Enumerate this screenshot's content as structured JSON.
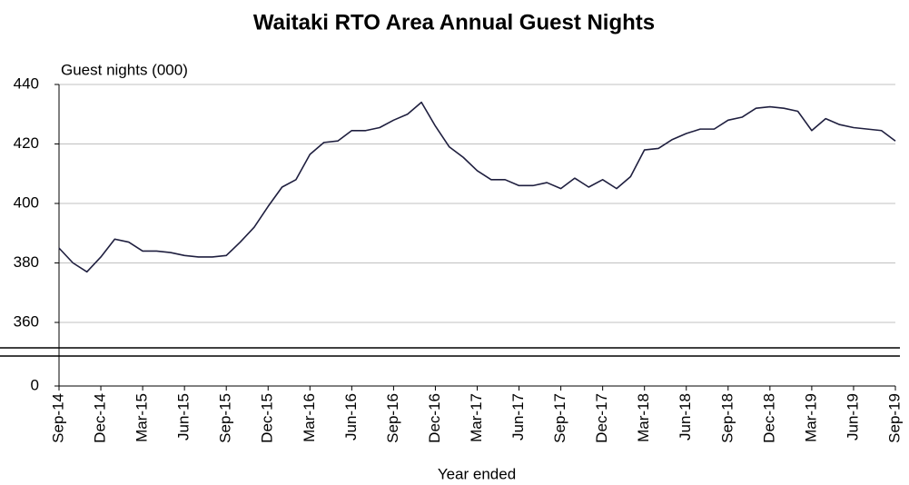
{
  "chart_data": {
    "type": "line",
    "title": "Waitaki RTO Area Annual  Guest Nights",
    "y_label": "Guest nights (000)",
    "x_label": "Year ended",
    "categories": [
      "Sep-14",
      null,
      null,
      "Dec-14",
      null,
      null,
      "Mar-15",
      null,
      null,
      "Jun-15",
      null,
      null,
      "Sep-15",
      null,
      null,
      "Dec-15",
      null,
      null,
      "Mar-16",
      null,
      null,
      "Jun-16",
      null,
      null,
      "Sep-16",
      null,
      null,
      "Dec-16",
      null,
      null,
      "Mar-17",
      null,
      null,
      "Jun-17",
      null,
      null,
      "Sep-17",
      null,
      null,
      "Dec-17",
      null,
      null,
      "Mar-18",
      null,
      null,
      "Jun-18",
      null,
      null,
      "Sep-18",
      null,
      null,
      "Dec-18",
      null,
      null,
      "Mar-19",
      null,
      null,
      "Jun-19",
      null,
      null,
      "Sep-19"
    ],
    "series": [
      {
        "name": "Guest nights",
        "color": "#1f1f3f",
        "values": [
          385,
          380,
          377,
          382,
          388,
          387,
          384,
          384,
          383.5,
          382.5,
          382,
          382,
          382.5,
          387,
          392,
          399,
          405.5,
          408,
          416.5,
          420.5,
          421,
          424.5,
          424.5,
          425.5,
          428,
          430,
          434,
          426,
          419,
          415.5,
          411,
          408,
          408,
          406,
          406,
          407,
          405,
          408.5,
          405.5,
          408,
          405,
          409,
          418,
          418.5,
          421.5,
          423.5,
          425,
          425,
          428,
          429,
          432,
          432.5,
          432,
          431,
          424.5,
          428.5,
          426.5,
          425.5,
          425,
          424.5,
          421
        ]
      }
    ],
    "ylim": [
      0,
      440
    ],
    "yticks": [
      0,
      360,
      380,
      400,
      420,
      440
    ],
    "axis_break": true,
    "grid": true
  }
}
